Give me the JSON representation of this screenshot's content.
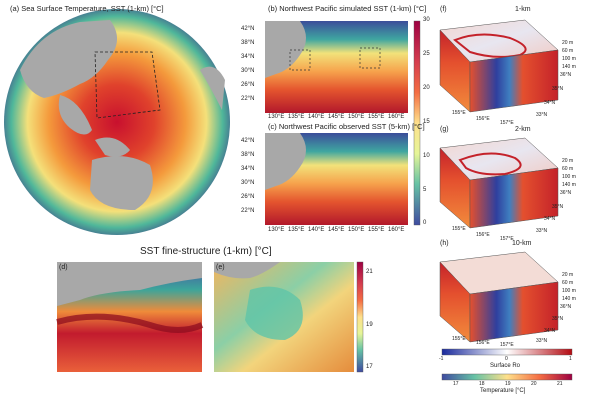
{
  "panels": {
    "a": {
      "title": "(a) Sea Surface Temperature, SST (1-km) [°C]"
    },
    "b": {
      "title": "(b) Northwest Pacific simulated SST (1-km) [°C]"
    },
    "c": {
      "title": "(c) Northwest Pacific observed SST (5-km) [°C]"
    },
    "bc_lat_ticks": [
      "42°N",
      "38°N",
      "34°N",
      "30°N",
      "26°N",
      "22°N"
    ],
    "bc_lon_ticks": [
      "130°E",
      "135°E",
      "140°E",
      "145°E",
      "150°E",
      "155°E",
      "160°E"
    ],
    "bc_colorbar_ticks": [
      "30",
      "25",
      "20",
      "15",
      "10",
      "5",
      "0"
    ],
    "fine": {
      "title": "SST fine-structure (1-km) [°C]",
      "d_label": "(d)",
      "e_label": "(e)",
      "colorbar_ticks": [
        "21",
        "19",
        "17"
      ]
    },
    "f": {
      "label": "(f)",
      "title": "1-km"
    },
    "g": {
      "label": "(g)",
      "title": "2-km"
    },
    "h": {
      "label": "(h)",
      "title": "10-km"
    },
    "cube_depths": [
      "20 m",
      "60 m",
      "100 m",
      "140 m"
    ],
    "cube_lats": [
      "36°N",
      "35°N",
      "34°N",
      "33°N"
    ],
    "cube_lons": [
      "155°E",
      "156°E",
      "157°E"
    ],
    "ro_bar": {
      "label": "Surface Ro",
      "ticks": [
        "-1",
        "0",
        "1"
      ]
    },
    "temp_bar": {
      "label": "Temperature [°C]",
      "ticks": [
        "17",
        "18",
        "19",
        "20",
        "21"
      ]
    }
  }
}
